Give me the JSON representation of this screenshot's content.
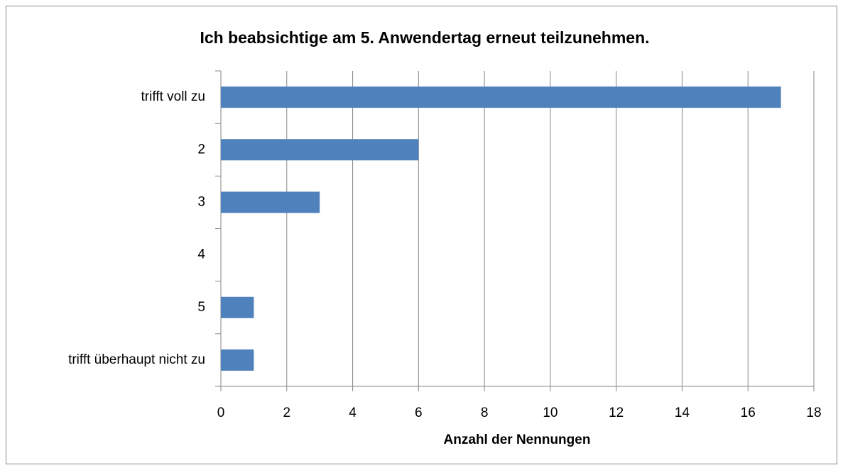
{
  "chart_data": {
    "type": "barh",
    "title": "Ich beabsichtige am 5. Anwendertag erneut teilzunehmen.",
    "x_label": "Anzahl der Nennungen",
    "categories": [
      "trifft voll zu",
      "2",
      "3",
      "4",
      "5",
      "trifft überhaupt nicht zu"
    ],
    "values": [
      17,
      6,
      3,
      0,
      1,
      1
    ],
    "color": "#4f81bd",
    "xlim": [
      0,
      18
    ],
    "xticks": [
      0,
      2,
      4,
      6,
      8,
      10,
      12,
      14,
      16,
      18
    ],
    "grid": true
  }
}
